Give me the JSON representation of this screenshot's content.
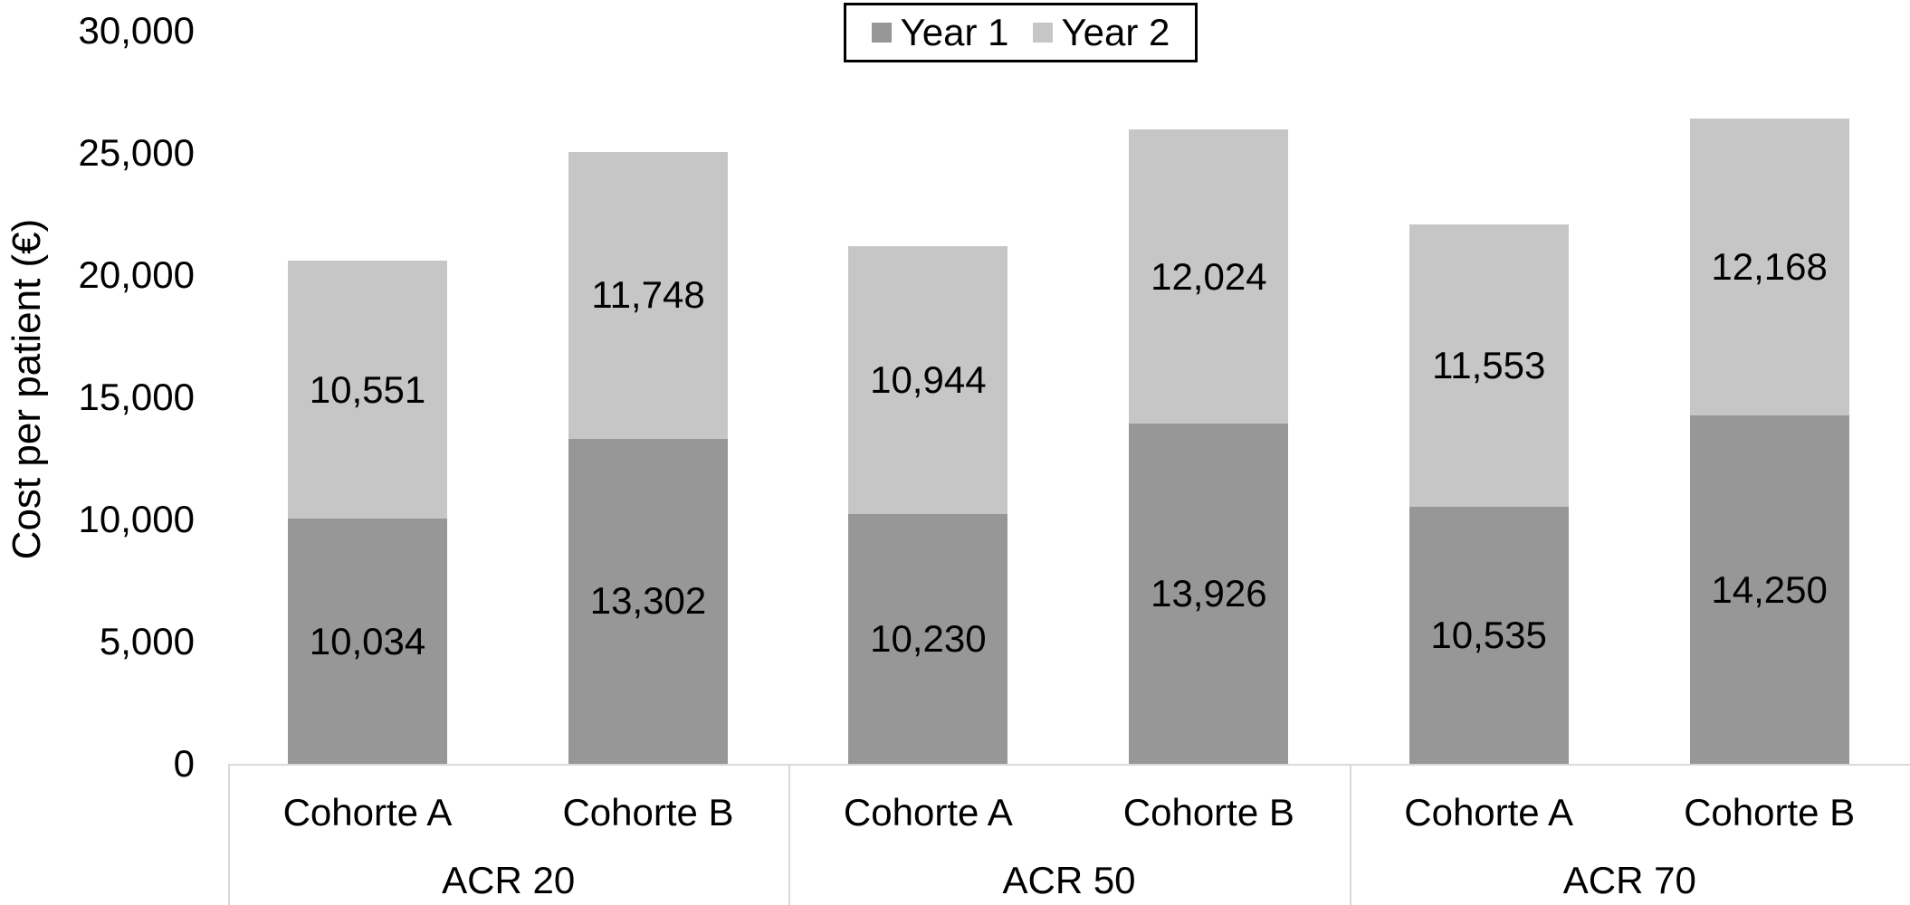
{
  "chart_data": {
    "type": "bar",
    "stacked": true,
    "title": "",
    "xlabel": "",
    "ylabel": "Cost per patient (€)",
    "ylim": [
      0,
      30000
    ],
    "grid": false,
    "legend_position": "top-center",
    "value_labels": true,
    "yticks": [
      {
        "label": "0",
        "value": 0
      },
      {
        "label": "5,000",
        "value": 5000
      },
      {
        "label": "10,000",
        "value": 10000
      },
      {
        "label": "15,000",
        "value": 15000
      },
      {
        "label": "20,000",
        "value": 20000
      },
      {
        "label": "25,000",
        "value": 25000
      },
      {
        "label": "30,000",
        "value": 30000
      }
    ],
    "groups": [
      "ACR 20",
      "ACR 50",
      "ACR 70"
    ],
    "categories": [
      "Cohorte A",
      "Cohorte B"
    ],
    "series": [
      {
        "name": "Year 1",
        "color": "#979797",
        "values": [
          [
            10034,
            13302
          ],
          [
            10230,
            13926
          ],
          [
            10535,
            14250
          ]
        ]
      },
      {
        "name": "Year 2",
        "color": "#c6c6c6",
        "values": [
          [
            10551,
            11748
          ],
          [
            10944,
            12024
          ],
          [
            11553,
            12168
          ]
        ]
      }
    ]
  },
  "colors": {
    "axis_line": "#d9d9d9",
    "text": "#000000",
    "legend_border": "#000000",
    "background": "#ffffff"
  }
}
